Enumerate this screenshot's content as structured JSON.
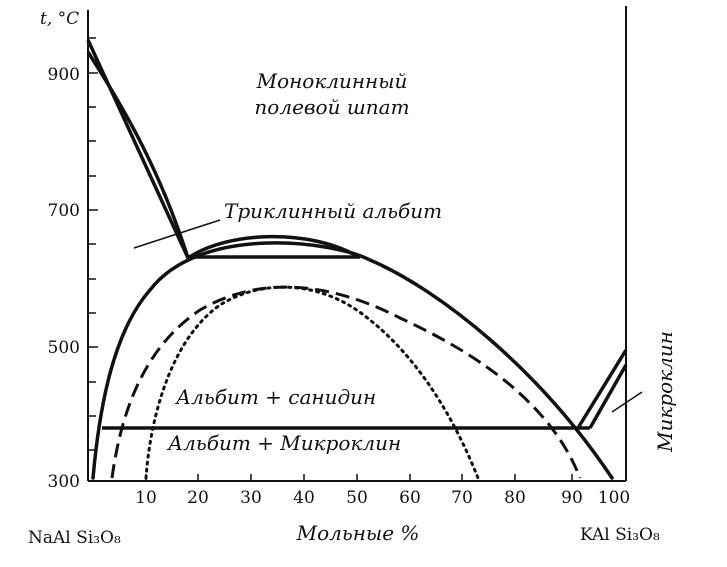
{
  "diagram": {
    "y_axis_title": "t, °C",
    "y_tick_labels": [
      "900",
      "700",
      "500",
      "300"
    ],
    "x_tick_labels": [
      "10",
      "20",
      "30",
      "40",
      "50",
      "60",
      "70",
      "80",
      "90",
      "100"
    ],
    "x_axis_title": "Мольные %",
    "left_compound": "NaAl Si₃O₈",
    "right_compound": "KAl Si₃O₈",
    "regions": {
      "monoclinic_line1": "Моноклинный",
      "monoclinic_line2": "полевой шпат",
      "triclinic_albite": "Триклинный альбит",
      "albite_sanidine": "Альбит + санидин",
      "albite_microcline": "Альбит + Микроклин",
      "microcline": "Микроклин"
    }
  },
  "colors": {
    "ink": "#111111",
    "background": "#ffffff"
  }
}
